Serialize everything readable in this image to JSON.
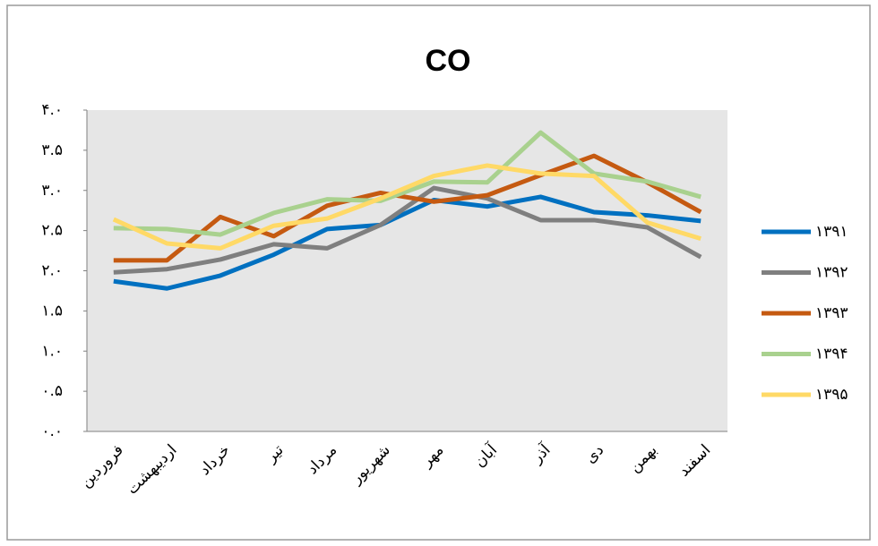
{
  "chart_data": {
    "type": "line",
    "title": "CO",
    "categories": [
      "فروردین",
      "اردیبهشت",
      "خرداد",
      "تیر",
      "مرداد",
      "شهریور",
      "مهر",
      "آبان",
      "آذر",
      "دی",
      "بهمن",
      "اسفند"
    ],
    "series": [
      {
        "name": "۱۳۹۱",
        "color": "#0070c0",
        "values": [
          1.87,
          1.78,
          1.94,
          2.2,
          2.52,
          2.57,
          2.88,
          2.8,
          2.92,
          2.73,
          2.69,
          2.62
        ]
      },
      {
        "name": "۱۳۹۲",
        "color": "#7f7f7f",
        "values": [
          1.98,
          2.02,
          2.14,
          2.33,
          2.28,
          2.57,
          3.03,
          2.9,
          2.63,
          2.63,
          2.54,
          2.17
        ]
      },
      {
        "name": "۱۳۹۳",
        "color": "#c55a11",
        "values": [
          2.13,
          2.13,
          2.67,
          2.43,
          2.81,
          2.97,
          2.86,
          2.94,
          3.19,
          3.43,
          3.1,
          2.73
        ]
      },
      {
        "name": "۱۳۹۴",
        "color": "#a9d18e",
        "values": [
          2.53,
          2.52,
          2.45,
          2.72,
          2.89,
          2.87,
          3.11,
          3.1,
          3.72,
          3.21,
          3.11,
          2.92
        ]
      },
      {
        "name": "۱۳۹۵",
        "color": "#ffd966",
        "values": [
          2.64,
          2.34,
          2.28,
          2.56,
          2.65,
          2.9,
          3.18,
          3.31,
          3.21,
          3.18,
          2.6,
          2.4
        ]
      }
    ],
    "ylim": [
      0,
      4
    ],
    "yticks": [
      {
        "value": 0,
        "label": "۰.۰"
      },
      {
        "value": 0.5,
        "label": "۰.۵"
      },
      {
        "value": 1,
        "label": "۱.۰"
      },
      {
        "value": 1.5,
        "label": "۱.۵"
      },
      {
        "value": 2,
        "label": "۲.۰"
      },
      {
        "value": 2.5,
        "label": "۲.۵"
      },
      {
        "value": 3,
        "label": "۳.۰"
      },
      {
        "value": 3.5,
        "label": "۳.۵"
      },
      {
        "value": 4,
        "label": "۴.۰"
      }
    ],
    "legend": "right"
  }
}
